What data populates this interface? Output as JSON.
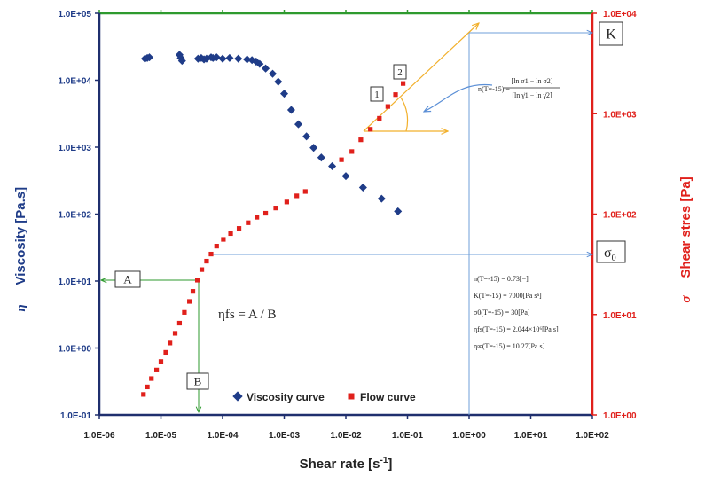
{
  "chart_data": {
    "type": "scatter",
    "xlabel": "Shear rate [s",
    "xlabel_sup": "-1",
    "xlabel_end": "]",
    "ylabel_left_symbol": "η",
    "ylabel_left": "Viscosity [Pa.s]",
    "ylabel_right_symbol": "σ",
    "ylabel_right": "Shear stres [Pa]",
    "x_scale": "log",
    "xlim": [
      1e-06,
      100
    ],
    "y_left_scale": "log",
    "y_left_lim": [
      0.1,
      100000
    ],
    "y_right_scale": "log",
    "y_right_lim": [
      1,
      10000
    ],
    "x_tick_labels": [
      "1.0E-06",
      "1.0E-05",
      "1.0E-04",
      "1.0E-03",
      "1.0E-02",
      "1.0E-01",
      "1.0E+00",
      "1.0E+01",
      "1.0E+02"
    ],
    "y_left_tick_labels": [
      "1.0E-01",
      "1.0E+00",
      "1.0E+01",
      "1.0E+02",
      "1.0E+03",
      "1.0E+04",
      "1.0E+05"
    ],
    "y_right_tick_labels": [
      "1.0E+00",
      "1.0E+01",
      "1.0E+02",
      "1.0E+03",
      "1.0E+04"
    ],
    "grid": false,
    "legend_position": "bottom-center",
    "series": [
      {
        "name": "Viscosity curve",
        "axis": "left",
        "color": "#1f3c88",
        "marker": "diamond",
        "x": [
          5.5e-06,
          6e-06,
          6.5e-06,
          2e-05,
          2.1e-05,
          2.2e-05,
          4e-05,
          4.5e-05,
          5e-05,
          5.5e-05,
          6.5e-05,
          7e-05,
          8e-05,
          0.0001,
          0.00013,
          0.00018,
          0.00025,
          0.0003,
          0.00035,
          0.0004,
          0.0005,
          0.00065,
          0.0008,
          0.001,
          0.0013,
          0.0017,
          0.0023,
          0.003,
          0.004,
          0.006,
          0.01,
          0.019,
          0.038,
          0.07
        ],
        "y": [
          21000,
          21500,
          22000,
          24000,
          21500,
          19500,
          21000,
          21500,
          20500,
          21000,
          22000,
          21500,
          22000,
          21000,
          21500,
          21000,
          20500,
          20000,
          19000,
          17500,
          15000,
          12500,
          9500,
          6300,
          3600,
          2200,
          1450,
          980,
          700,
          520,
          370,
          250,
          170,
          110
        ]
      },
      {
        "name": "Flow curve",
        "axis": "right",
        "color": "#e0201b",
        "marker": "square",
        "x": [
          5.2e-06,
          6e-06,
          7e-06,
          8.5e-06,
          1e-05,
          1.2e-05,
          1.4e-05,
          1.7e-05,
          2e-05,
          2.4e-05,
          2.9e-05,
          3.3e-05,
          3.9e-05,
          4.6e-05,
          5.5e-05,
          6.5e-05,
          8e-05,
          0.000103,
          0.000135,
          0.000185,
          0.00026,
          0.00036,
          0.0005,
          0.00073,
          0.0011,
          0.0016,
          0.0022,
          0.0085,
          0.0125,
          0.0175,
          0.025,
          0.035,
          0.048,
          0.064,
          0.085
        ],
        "y": [
          1.6,
          1.9,
          2.3,
          2.8,
          3.4,
          4.2,
          5.2,
          6.5,
          8.2,
          10.5,
          13.5,
          17,
          22,
          28,
          34,
          40,
          48,
          56,
          64,
          72,
          82,
          93,
          102,
          115,
          132,
          152,
          168,
          348,
          420,
          550,
          700,
          900,
          1180,
          1550,
          2000
        ]
      }
    ],
    "annotations": {
      "A": "A",
      "B": "B",
      "K": "K",
      "sigma0_symbol": "σ",
      "sigma0_sub": "0",
      "label_1": "1",
      "label_2": "2",
      "eta_fs_formula": "ηfs = A / B",
      "slope_formula_lhs": "n(T=-15) =",
      "slope_formula_num": "[ln σ1 − ln σ2]",
      "slope_formula_den": "[ln γ̇1 − ln γ̇2]",
      "params": [
        "n(T=-15) = 0.73[−]",
        "K(T=-15) = 7000[Pa sⁿ]",
        "σ0(T=-15) = 30[Pa]",
        "ηfs(T=-15) = 2.044×10⁶[Pa s]",
        "η∞(T=-15) = 10.27[Pa s]"
      ]
    }
  }
}
